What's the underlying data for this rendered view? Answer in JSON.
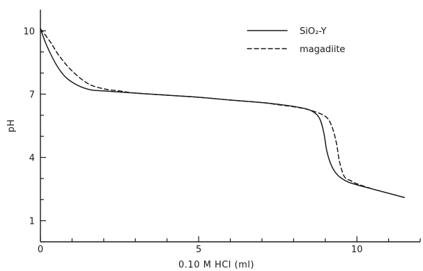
{
  "chart_data": {
    "type": "line",
    "title": "",
    "xlabel": "0.10 M HCl   (ml)",
    "ylabel": "pH",
    "xlim": [
      0,
      12
    ],
    "ylim": [
      0,
      11
    ],
    "x_ticks": [
      0,
      5,
      10
    ],
    "x_tick_labels": [
      "0",
      "5",
      "10"
    ],
    "y_ticks": [
      1,
      4,
      7,
      10
    ],
    "y_tick_labels": [
      "1",
      "4",
      "7",
      "10"
    ],
    "grid": false,
    "legend_position": "top-right",
    "series": [
      {
        "name": "SiO₂-Y",
        "style": "solid",
        "color": "#1a1a1a",
        "x": [
          0,
          0.2,
          0.5,
          0.8,
          1.2,
          1.6,
          2.0,
          3.0,
          4.0,
          5.0,
          6.0,
          7.0,
          7.5,
          8.0,
          8.5,
          8.8,
          8.95,
          9.05,
          9.2,
          9.4,
          9.7,
          10.0,
          10.5,
          11.0,
          11.5
        ],
        "y": [
          10.1,
          9.3,
          8.4,
          7.8,
          7.4,
          7.2,
          7.15,
          7.05,
          6.95,
          6.85,
          6.72,
          6.6,
          6.52,
          6.42,
          6.25,
          5.9,
          5.2,
          4.3,
          3.6,
          3.15,
          2.85,
          2.7,
          2.5,
          2.3,
          2.1
        ]
      },
      {
        "name": "magadiite",
        "style": "dashed",
        "color": "#1a1a1a",
        "x": [
          0,
          0.3,
          0.6,
          1.0,
          1.5,
          2.0,
          2.5,
          3.0,
          4.0,
          5.0,
          6.0,
          7.0,
          7.5,
          8.0,
          8.5,
          9.0,
          9.2,
          9.35,
          9.45,
          9.6,
          9.8,
          10.0,
          10.5
        ],
        "y": [
          10.1,
          9.5,
          8.8,
          8.1,
          7.5,
          7.25,
          7.15,
          7.05,
          6.95,
          6.85,
          6.72,
          6.6,
          6.5,
          6.4,
          6.25,
          5.95,
          5.5,
          4.7,
          3.8,
          3.1,
          2.9,
          2.75,
          2.5
        ]
      }
    ]
  }
}
